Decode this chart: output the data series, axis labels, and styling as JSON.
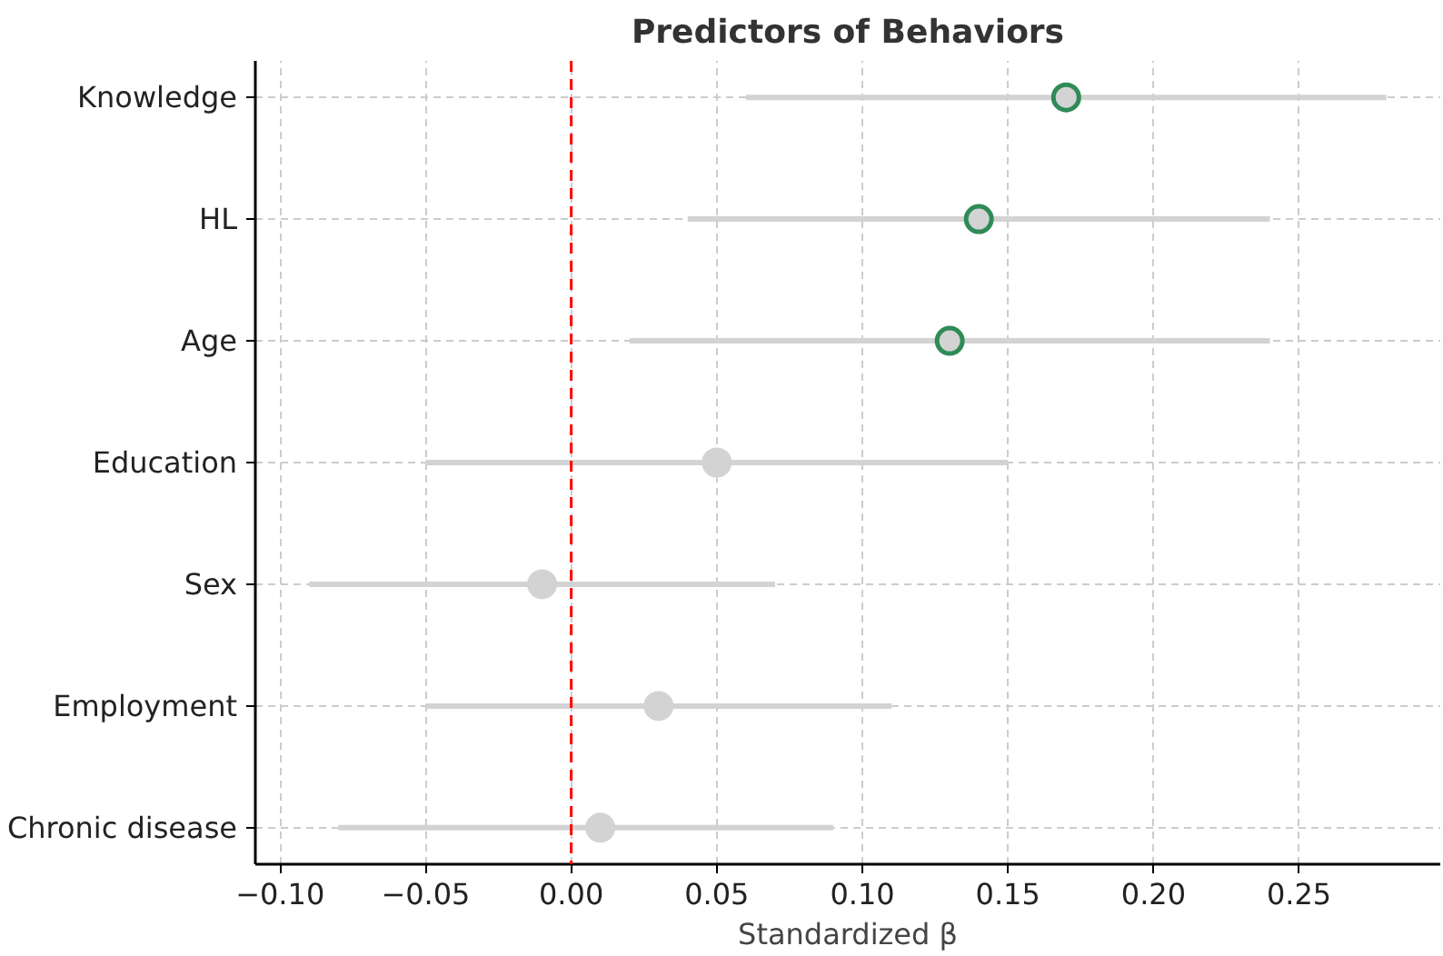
{
  "chart_data": {
    "type": "scatter",
    "orientation": "horizontal",
    "title": "Predictors of Behaviors",
    "xlabel": "Standardized β",
    "categories": [
      "Knowledge",
      "HL",
      "Age",
      "Education",
      "Sex",
      "Employment",
      "Chronic disease"
    ],
    "series": [
      {
        "color": "#d3d3d3",
        "colors": [
          "#2e8b57",
          "#2e8b57",
          "#2e8b57",
          "#d3d3d3",
          "#d3d3d3",
          "#d3d3d3",
          "#d3d3d3"
        ],
        "values": [
          0.17,
          0.14,
          0.13,
          0.05,
          -0.01,
          0.03,
          0.01
        ],
        "errors": [
          [
            0.06,
            0.28
          ],
          [
            0.04,
            0.24
          ],
          [
            0.02,
            0.24
          ],
          [
            -0.05,
            0.15
          ],
          [
            -0.09,
            0.07
          ],
          [
            -0.05,
            0.11
          ],
          [
            -0.08,
            0.09
          ]
        ]
      }
    ],
    "xlim": [
      -0.1085,
      0.2985
    ],
    "xticks": [
      {
        "value": -0.1,
        "label": "−0.10"
      },
      {
        "value": -0.05,
        "label": "−0.05"
      },
      {
        "value": 0,
        "label": "0.00"
      },
      {
        "value": 0.05,
        "label": "0.05"
      },
      {
        "value": 0.1,
        "label": "0.10"
      },
      {
        "value": 0.15,
        "label": "0.15"
      },
      {
        "value": 0.2,
        "label": "0.20"
      },
      {
        "value": 0.25,
        "label": "0.25"
      }
    ],
    "ref_lines": [
      {
        "axis": "x",
        "value": 0,
        "color": "#ff0000",
        "line_style": "dashed"
      }
    ],
    "grid": true,
    "marker": "circle"
  }
}
